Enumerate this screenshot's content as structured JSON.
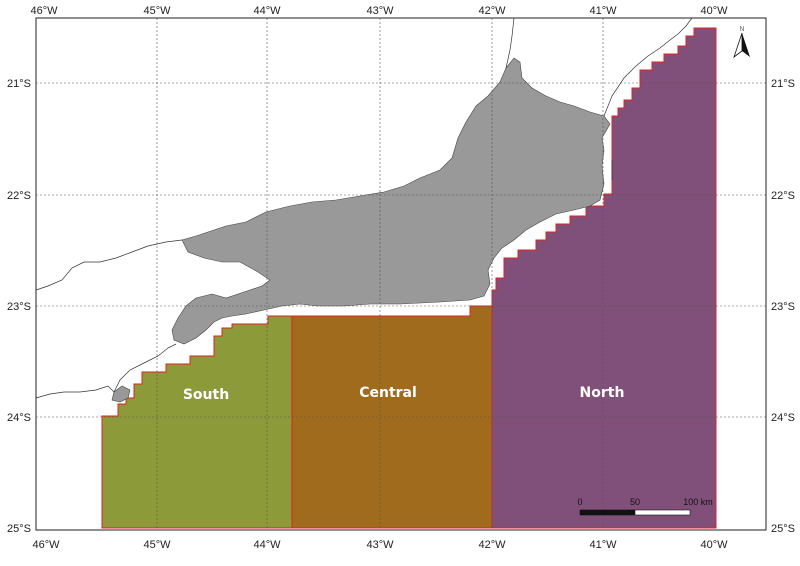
{
  "map": {
    "longitude_labels": [
      "46°W",
      "45°W",
      "44°W",
      "43°W",
      "42°W",
      "41°W",
      "40°W"
    ],
    "latitude_labels": [
      "21°S",
      "22°S",
      "23°S",
      "24°S",
      "25°S"
    ],
    "regions": [
      {
        "name": "South",
        "color": "#8d9a3a"
      },
      {
        "name": "Central",
        "color": "#a06b1c"
      },
      {
        "name": "North",
        "color": "#80507a"
      }
    ],
    "land_color": "#999999",
    "boundary_color": "#e02020",
    "scale_bar": {
      "labels": [
        "0",
        "50",
        "100 km"
      ]
    },
    "north_arrow": {
      "label": "N"
    }
  }
}
